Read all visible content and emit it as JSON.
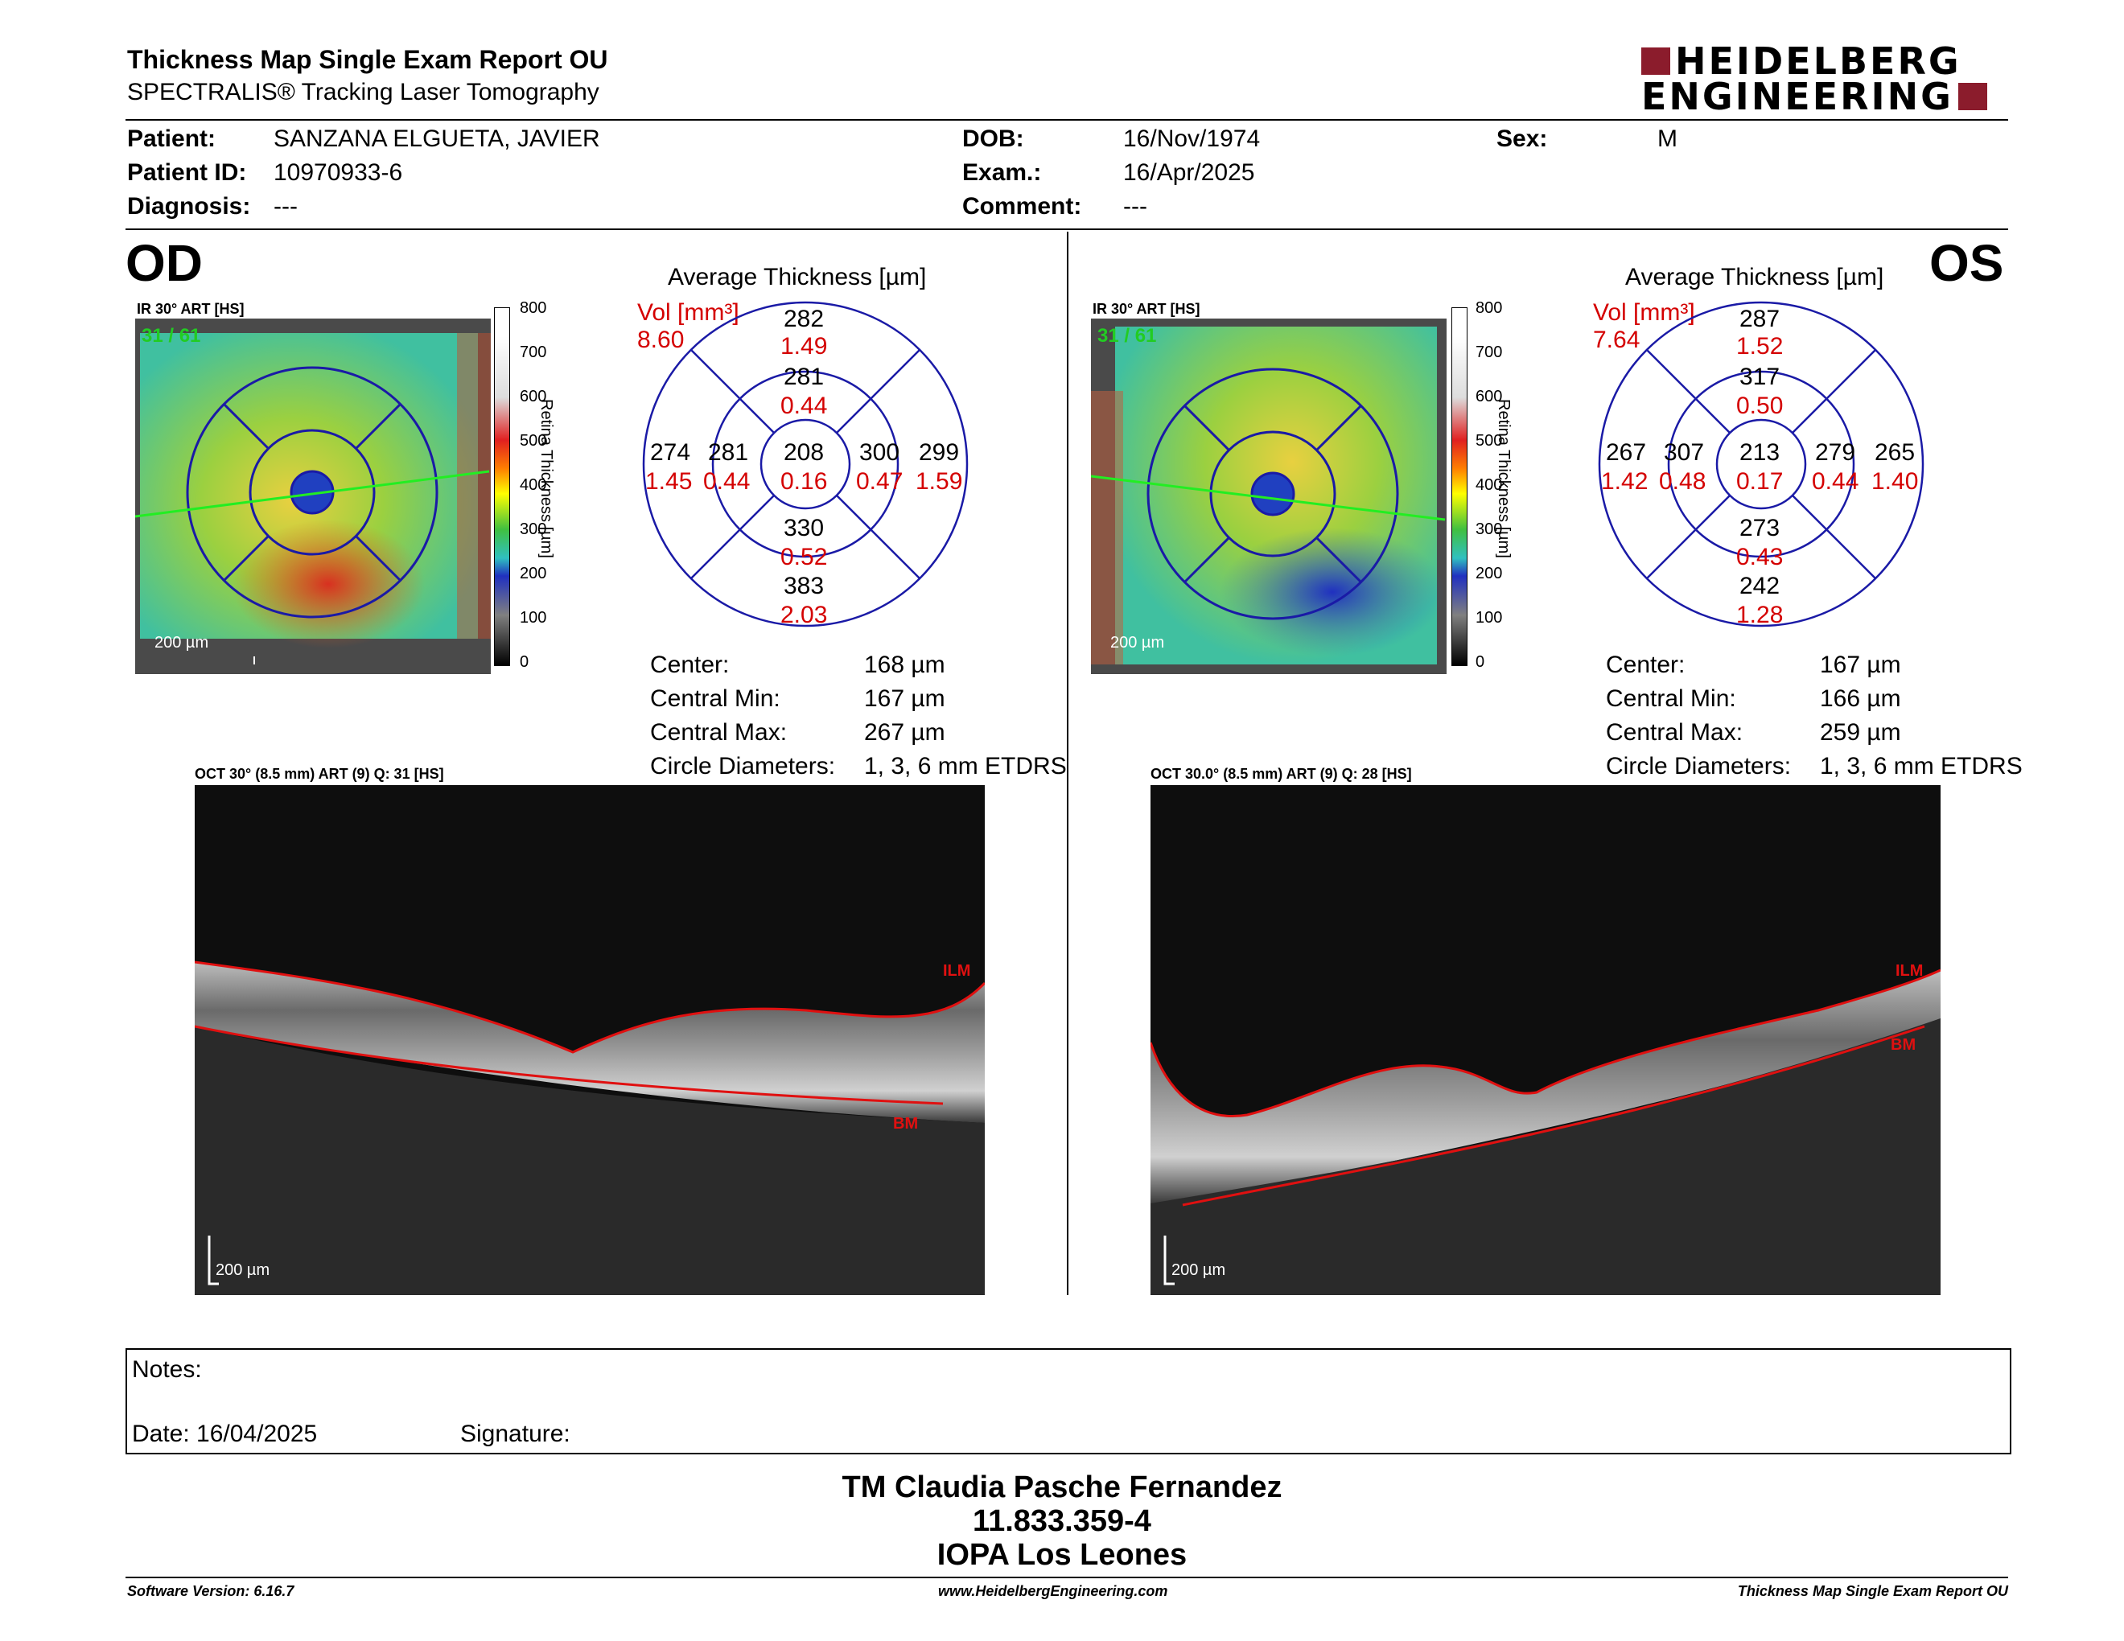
{
  "header": {
    "title": "Thickness Map Single Exam Report OU",
    "subtitle": "SPECTRALIS® Tracking Laser Tomography",
    "logo_line1": "HEIDELBERG",
    "logo_line2": "ENGINEERING"
  },
  "patient": {
    "patient_label": "Patient:",
    "patient_value": "SANZANA ELGUETA, JAVIER",
    "id_label": "Patient ID:",
    "id_value": "10970933-6",
    "diagnosis_label": "Diagnosis:",
    "diagnosis_value": "---",
    "dob_label": "DOB:",
    "dob_value": "16/Nov/1974",
    "exam_label": "Exam.:",
    "exam_value": "16/Apr/2025",
    "comment_label": "Comment:",
    "comment_value": "---",
    "sex_label": "Sex:",
    "sex_value": "M"
  },
  "od": {
    "eye": "OD",
    "ir_caption": "IR 30° ART [HS]",
    "frame_label": "31 / 61",
    "scale_bar": "200 µm",
    "colorbar_ticks": [
      "800",
      "700",
      "600",
      "500",
      "400",
      "300",
      "200",
      "100",
      "0"
    ],
    "colorbar_title": "Retina  Thickness [µm]",
    "grid_title": "Average Thickness [µm]",
    "vol_label": "Vol [mm³]",
    "vol_value": "8.60",
    "grid": {
      "outer_sup": "282",
      "outer_sup_v": "1.49",
      "inner_sup": "281",
      "inner_sup_v": "0.44",
      "outer_temp": "274",
      "outer_temp_v": "1.45",
      "inner_temp": "281",
      "inner_temp_v": "0.44",
      "center": "208",
      "center_v": "0.16",
      "inner_nas": "300",
      "inner_nas_v": "0.47",
      "outer_nas": "299",
      "outer_nas_v": "1.59",
      "inner_inf": "330",
      "inner_inf_v": "0.52",
      "outer_inf": "383",
      "outer_inf_v": "2.03"
    },
    "stats": {
      "center_label": "Center:",
      "center_value": "168 µm",
      "min_label": "Central Min:",
      "min_value": "167 µm",
      "max_label": "Central Max:",
      "max_value": "267 µm",
      "diam_label": "Circle Diameters:",
      "diam_value": "1, 3, 6 mm ETDRS"
    },
    "oct_caption": "OCT 30° (8.5 mm) ART (9) Q: 31 [HS]",
    "ilm": "ILM",
    "bm": "BM",
    "oct_scale": "200 µm"
  },
  "os": {
    "eye": "OS",
    "ir_caption": "IR 30° ART [HS]",
    "frame_label": "31 / 61",
    "scale_bar": "200 µm",
    "colorbar_ticks": [
      "800",
      "700",
      "600",
      "500",
      "400",
      "300",
      "200",
      "100",
      "0"
    ],
    "colorbar_title": "Retina  Thickness [µm]",
    "grid_title": "Average Thickness [µm]",
    "vol_label": "Vol [mm³]",
    "vol_value": "7.64",
    "grid": {
      "outer_sup": "287",
      "outer_sup_v": "1.52",
      "inner_sup": "317",
      "inner_sup_v": "0.50",
      "outer_temp": "267",
      "outer_temp_v": "1.42",
      "inner_temp": "307",
      "inner_temp_v": "0.48",
      "center": "213",
      "center_v": "0.17",
      "inner_nas": "279",
      "inner_nas_v": "0.44",
      "outer_nas": "265",
      "outer_nas_v": "1.40",
      "inner_inf": "273",
      "inner_inf_v": "0.43",
      "outer_inf": "242",
      "outer_inf_v": "1.28"
    },
    "stats": {
      "center_label": "Center:",
      "center_value": "167 µm",
      "min_label": "Central Min:",
      "min_value": "166 µm",
      "max_label": "Central Max:",
      "max_value": "259 µm",
      "diam_label": "Circle Diameters:",
      "diam_value": "1, 3, 6 mm ETDRS"
    },
    "oct_caption": "OCT 30.0° (8.5 mm) ART (9) Q: 28 [HS]",
    "ilm": "ILM",
    "bm": "BM",
    "oct_scale": "200 µm"
  },
  "notes": {
    "notes_label": "Notes:",
    "date_label": "Date: 16/04/2025",
    "signature_label": "Signature:"
  },
  "signature_block": {
    "name": "TM Claudia Pasche Fernandez",
    "rut": "11.833.359-4",
    "org": "IOPA Los Leones"
  },
  "footer": {
    "software": "Software Version: 6.16.7",
    "website": "www.HeidelbergEngineering.com",
    "report": "Thickness Map Single Exam Report OU"
  },
  "colors": {
    "logo_red": "#8b1c2c",
    "grid_blue": "#1a1aa6",
    "value_red": "#d40000",
    "frame_green": "#22cc22"
  }
}
